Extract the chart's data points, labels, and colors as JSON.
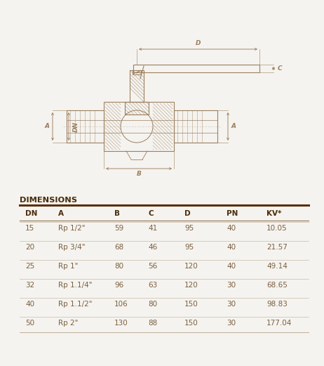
{
  "bg_color": "#f5f3ef",
  "drawing_color": "#9B8060",
  "text_color": "#7a6040",
  "title_color": "#4a2c0a",
  "line_color": "#9B8060",
  "table_title": "DIMENSIONS",
  "headers": [
    "DN",
    "A",
    "B",
    "C",
    "D",
    "PN",
    "KV*"
  ],
  "rows": [
    [
      "15",
      "Rp 1/2\"",
      "59",
      "41",
      "95",
      "40",
      "10.05"
    ],
    [
      "20",
      "Rp 3/4\"",
      "68",
      "46",
      "95",
      "40",
      "21.57"
    ],
    [
      "25",
      "Rp 1\"",
      "80",
      "56",
      "120",
      "40",
      "49.14"
    ],
    [
      "32",
      "Rp 1.1/4\"",
      "96",
      "63",
      "120",
      "30",
      "68.65"
    ],
    [
      "40",
      "Rp 1.1/2\"",
      "106",
      "80",
      "150",
      "30",
      "98.83"
    ],
    [
      "50",
      "Rp 2\"",
      "130",
      "88",
      "150",
      "30",
      "177.04"
    ]
  ],
  "fig_width": 4.62,
  "fig_height": 5.21,
  "dpi": 100
}
